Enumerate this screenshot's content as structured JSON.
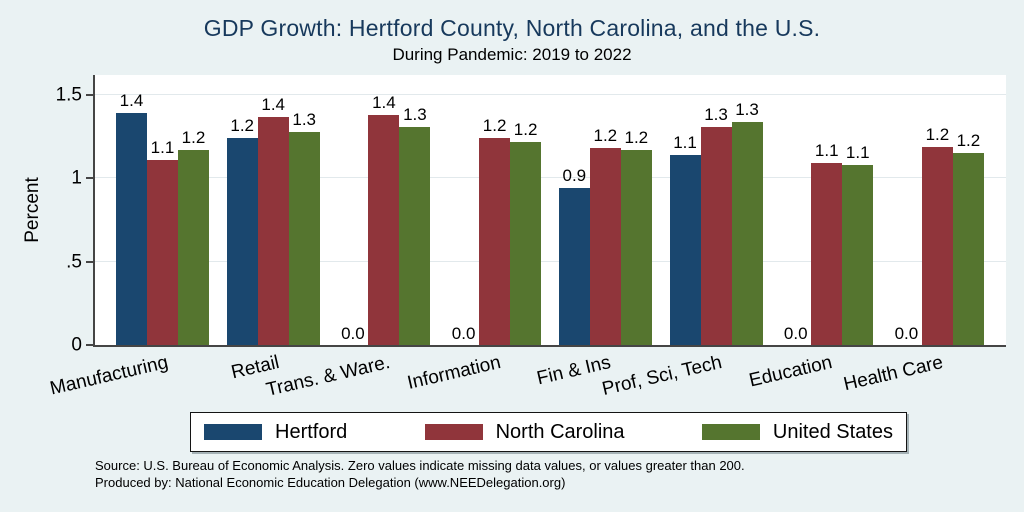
{
  "title": {
    "text": "GDP Growth: Hertford County, North Carolina, and the U.S."
  },
  "subtitle": {
    "text": "During Pandemic: 2019 to 2022"
  },
  "y_axis": {
    "label": "Percent",
    "ticks": [
      {
        "label": "0",
        "value": 0
      },
      {
        "label": ".5",
        "value": 0.5
      },
      {
        "label": "1",
        "value": 1
      },
      {
        "label": "1.5",
        "value": 1.5
      }
    ]
  },
  "palette": {
    "background": "#eaf2f3",
    "plot_background": "#ffffff",
    "axis": "#454545",
    "grid": "#e2e9ec",
    "title": "#17395c"
  },
  "notes": {
    "line1": "Source: U.S. Bureau of Economic Analysis. Zero values indicate missing data values, or values greater than 200.",
    "line2": "Produced by: National Economic Education Delegation (www.NEEDelegation.org)"
  },
  "chart_data": {
    "type": "bar",
    "title": "GDP Growth: Hertford County, North Carolina, and the U.S.",
    "subtitle": "During Pandemic: 2019 to 2022",
    "ylabel": "Percent",
    "xlabel": "",
    "categories": [
      "Manufacturing",
      "Retail",
      "Trans. & Ware.",
      "Information",
      "Fin & Ins",
      "Prof, Sci, Tech",
      "Education",
      "Health Care"
    ],
    "series": [
      {
        "name": "Hertford",
        "color": "#1a476f",
        "values": [
          1.4,
          1.2,
          0.0,
          0.0,
          0.9,
          1.1,
          0.0,
          0.0
        ],
        "plot_values": [
          1.39,
          1.24,
          0,
          0,
          0.94,
          1.14,
          0,
          0
        ]
      },
      {
        "name": "North Carolina",
        "color": "#90353b",
        "values": [
          1.1,
          1.4,
          1.4,
          1.2,
          1.2,
          1.3,
          1.1,
          1.2
        ],
        "plot_values": [
          1.11,
          1.37,
          1.38,
          1.24,
          1.18,
          1.31,
          1.09,
          1.19
        ]
      },
      {
        "name": "United States",
        "color": "#55752f",
        "values": [
          1.2,
          1.3,
          1.3,
          1.2,
          1.2,
          1.3,
          1.1,
          1.2
        ],
        "plot_values": [
          1.17,
          1.28,
          1.31,
          1.22,
          1.17,
          1.34,
          1.08,
          1.15
        ]
      }
    ],
    "ylim": [
      0,
      1.62
    ],
    "yticks": [
      0,
      0.5,
      1,
      1.5
    ],
    "grid": true,
    "bar_value_labels": true,
    "legend_position": "bottom"
  }
}
